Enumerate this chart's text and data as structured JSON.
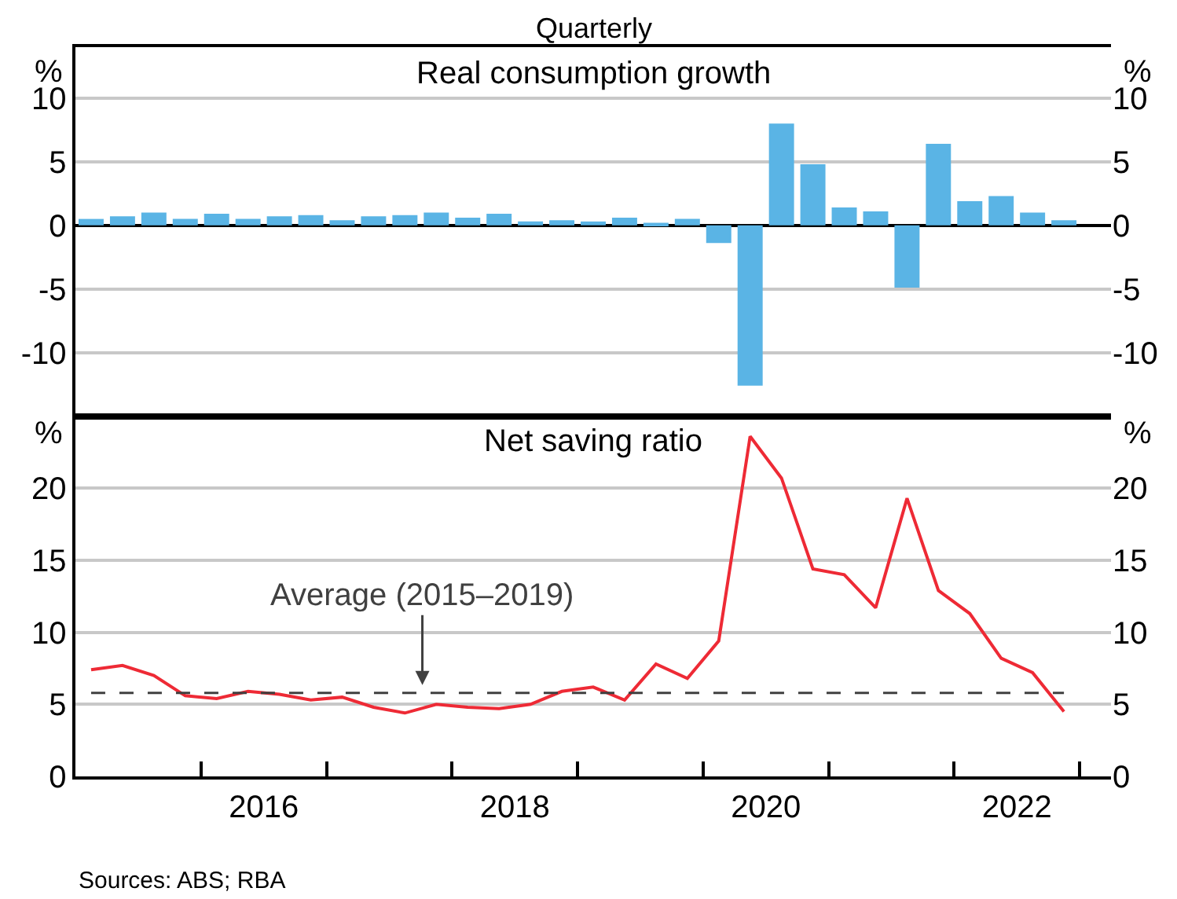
{
  "chart_data": [
    {
      "type": "bar",
      "title": "Real consumption growth",
      "subtitle": "Quarterly",
      "ylabel": "%",
      "y2label": "%",
      "tick_labels": "y",
      "grid": "y",
      "color": "#5ab4e5",
      "x": [
        2015.125,
        2015.375,
        2015.625,
        2015.875,
        2016.125,
        2016.375,
        2016.625,
        2016.875,
        2017.125,
        2017.375,
        2017.625,
        2017.875,
        2018.125,
        2018.375,
        2018.625,
        2018.875,
        2019.125,
        2019.375,
        2019.625,
        2019.875,
        2020.125,
        2020.375,
        2020.625,
        2020.875,
        2021.125,
        2021.375,
        2021.625,
        2021.875,
        2022.125,
        2022.375,
        2022.625,
        2022.875
      ],
      "values": [
        0.5,
        0.7,
        1.0,
        0.5,
        0.9,
        0.5,
        0.7,
        0.8,
        0.4,
        0.7,
        0.8,
        1.0,
        0.6,
        0.9,
        0.3,
        0.4,
        0.3,
        0.6,
        0.2,
        0.5,
        -1.4,
        -12.6,
        8.0,
        4.8,
        1.4,
        1.1,
        -4.9,
        6.4,
        1.9,
        2.3,
        1.0,
        0.4
      ],
      "xlim": [
        2015,
        2023.25
      ],
      "ylim": [
        -15,
        14
      ],
      "yticks": [
        -10,
        -5,
        0,
        5,
        10
      ],
      "y2lim": [
        -15,
        14
      ],
      "y2ticks": [
        -10,
        -5,
        0,
        5,
        10
      ]
    },
    {
      "type": "line",
      "title": "Net saving ratio",
      "ylabel": "%",
      "y2label": "%",
      "grid": "y",
      "color": "#ee2a35",
      "line_style": "solid",
      "x": [
        2015.125,
        2015.375,
        2015.625,
        2015.875,
        2016.125,
        2016.375,
        2016.625,
        2016.875,
        2017.125,
        2017.375,
        2017.625,
        2017.875,
        2018.125,
        2018.375,
        2018.625,
        2018.875,
        2019.125,
        2019.375,
        2019.625,
        2019.875,
        2020.125,
        2020.375,
        2020.625,
        2020.875,
        2021.125,
        2021.375,
        2021.625,
        2021.875,
        2022.125,
        2022.375,
        2022.625,
        2022.875
      ],
      "values": [
        7.4,
        7.7,
        7.0,
        5.6,
        5.4,
        5.9,
        5.7,
        5.3,
        5.5,
        4.8,
        4.4,
        5.0,
        4.8,
        4.7,
        5.0,
        5.9,
        6.2,
        5.3,
        7.8,
        6.8,
        9.4,
        23.6,
        20.7,
        14.4,
        14.0,
        11.7,
        19.3,
        12.9,
        11.3,
        8.2,
        7.2,
        4.5
      ],
      "xlim": [
        2015,
        2023.25
      ],
      "xticks": [
        {
          "value": 2016,
          "label": null
        },
        {
          "value": 2016.5,
          "label": "2016"
        },
        {
          "value": 2017,
          "label": null
        },
        {
          "value": 2018,
          "label": null
        },
        {
          "value": 2018.5,
          "label": "2018"
        },
        {
          "value": 2019,
          "label": null
        },
        {
          "value": 2020,
          "label": null
        },
        {
          "value": 2020.5,
          "label": "2020"
        },
        {
          "value": 2021,
          "label": null
        },
        {
          "value": 2022,
          "label": null
        },
        {
          "value": 2022.5,
          "label": "2022"
        },
        {
          "value": 2023,
          "label": null
        }
      ],
      "ylim": [
        0,
        25
      ],
      "yticks": [
        0,
        5,
        10,
        15,
        20
      ],
      "y2lim": [
        0,
        25
      ],
      "y2ticks": [
        0,
        5,
        10,
        15,
        20
      ],
      "ref_lines": [
        {
          "axis": "y",
          "value": 5.8,
          "label": "Average (2015–2019)",
          "color": "#404040",
          "line_style": "dashed"
        }
      ],
      "annotations": [
        "Sources: ABS; RBA"
      ]
    }
  ]
}
